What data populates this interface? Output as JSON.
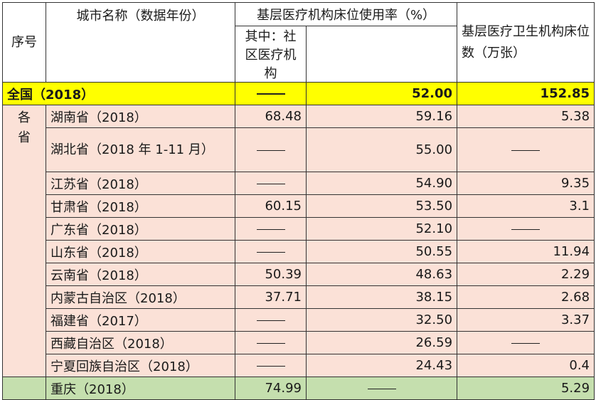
{
  "header": {
    "col_index": "序号",
    "col_city": "城市名称（数据年份）",
    "col_rate": "基层医疗机构床位使用率（%）",
    "col_rate_sub": "其中：社区医疗机构",
    "col_beds": "基层医疗卫生机构床位数（万张）"
  },
  "national": {
    "name": "全国（2018）",
    "rate": null,
    "rate_sub": "52.00",
    "beds": "152.85"
  },
  "group_label": "各省",
  "provinces": [
    {
      "name": "湖南省（2018）",
      "rate": "68.48",
      "rate_sub": "59.16",
      "beds": "5.38"
    },
    {
      "name": "湖北省（2018 年 1-11 月）",
      "rate": null,
      "rate_sub": "55.00",
      "beds": null
    },
    {
      "name": "江苏省（2018）",
      "rate": null,
      "rate_sub": "54.90",
      "beds": "9.35"
    },
    {
      "name": "甘肃省（2018）",
      "rate": "60.15",
      "rate_sub": "53.50",
      "beds": "3.1"
    },
    {
      "name": "广东省（2018）",
      "rate": null,
      "rate_sub": "52.10",
      "beds": null
    },
    {
      "name": "山东省（2018）",
      "rate": null,
      "rate_sub": "50.55",
      "beds": "11.94"
    },
    {
      "name": "云南省（2018）",
      "rate": "50.39",
      "rate_sub": "48.63",
      "beds": "2.29"
    },
    {
      "name": "内蒙古自治区（2018）",
      "rate": "37.71",
      "rate_sub": "38.15",
      "beds": "2.68"
    },
    {
      "name": "福建省（2017）",
      "rate": null,
      "rate_sub": "32.50",
      "beds": "3.37"
    },
    {
      "name": "西藏自治区（2018）",
      "rate": null,
      "rate_sub": "26.59",
      "beds": null
    },
    {
      "name": "宁夏回族自治区（2018）",
      "rate": null,
      "rate_sub": "24.43",
      "beds": "0.4"
    }
  ],
  "chongqing": {
    "name": "重庆（2018）",
    "rate": "74.99",
    "rate_sub": null,
    "beds": "5.29"
  },
  "colors": {
    "national_bg": "#ffff00",
    "province_bg": "#fbe1d7",
    "chongqing_bg": "#c5dfae"
  }
}
